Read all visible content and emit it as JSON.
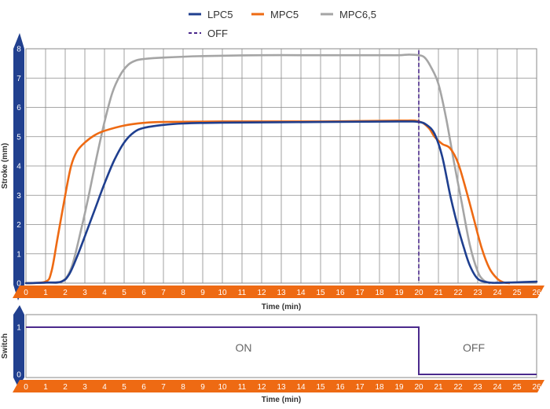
{
  "colors": {
    "LPC5": "#1f3f8f",
    "MPC5": "#ee6a13",
    "MPC6,5": "#a5a5a5",
    "OFF": "#4b2a8c",
    "axis_band_x": "#ee6a13",
    "axis_band_y": "#21408f",
    "grid": "#8a8a8a",
    "switch": "#4b2a8c"
  },
  "legend": [
    {
      "label": "LPC5",
      "style": "solid",
      "color_key": "LPC5"
    },
    {
      "label": "MPC5",
      "style": "solid",
      "color_key": "MPC5"
    },
    {
      "label": "MPC6,5",
      "style": "solid",
      "color_key": "MPC6,5"
    },
    {
      "label": "OFF",
      "style": "dashed",
      "color_key": "OFF"
    }
  ],
  "chart_data": [
    {
      "type": "line",
      "xlabel": "Time (min)",
      "ylabel": "Stroke (mm)",
      "xlim": [
        0,
        26
      ],
      "ylim": [
        0,
        8
      ],
      "x_ticks": [
        "0",
        "1",
        "2",
        "3",
        "4",
        "5",
        "6",
        "7",
        "8",
        "9",
        "10",
        "11",
        "12",
        "13",
        "14",
        "15",
        "16",
        "17",
        "18",
        "19",
        "20",
        "21",
        "22",
        "23",
        "24",
        "25",
        "26"
      ],
      "y_ticks": [
        "0",
        "1",
        "2",
        "3",
        "4",
        "5",
        "6",
        "7",
        "8"
      ],
      "grid": true,
      "legend_position": "top",
      "series": [
        {
          "name": "LPC5",
          "color_key": "LPC5",
          "x": [
            0,
            1,
            1.8,
            2.2,
            2.6,
            3,
            3.5,
            4,
            4.5,
            5,
            5.5,
            6,
            7,
            8,
            10,
            15,
            19,
            20,
            20.4,
            20.8,
            21.2,
            21.6,
            22,
            22.3,
            22.6,
            23,
            23.5,
            24,
            25,
            26
          ],
          "y": [
            0,
            0.02,
            0.05,
            0.3,
            0.9,
            1.6,
            2.5,
            3.4,
            4.2,
            4.8,
            5.15,
            5.3,
            5.4,
            5.45,
            5.48,
            5.5,
            5.52,
            5.5,
            5.4,
            5.1,
            4.3,
            3.0,
            1.9,
            1.2,
            0.6,
            0.15,
            0.03,
            0.01,
            0.03,
            0.05
          ]
        },
        {
          "name": "MPC5",
          "color_key": "MPC5",
          "x": [
            0,
            1,
            1.3,
            1.6,
            2,
            2.3,
            2.6,
            3,
            3.5,
            4,
            5,
            6,
            7,
            10,
            15,
            19,
            20,
            20.5,
            20.8,
            21.2,
            21.6,
            22,
            22.4,
            22.8,
            23.2,
            23.6,
            24,
            24.3,
            24.6
          ],
          "y": [
            0,
            0.05,
            0.4,
            1.5,
            3.0,
            4.0,
            4.5,
            4.8,
            5.05,
            5.2,
            5.38,
            5.47,
            5.5,
            5.52,
            5.52,
            5.55,
            5.52,
            5.3,
            5.0,
            4.75,
            4.6,
            4.1,
            3.2,
            2.2,
            1.2,
            0.5,
            0.15,
            0.03,
            0
          ]
        },
        {
          "name": "MPC6,5",
          "color_key": "MPC6,5",
          "x": [
            0,
            1,
            1.8,
            2.3,
            2.8,
            3.2,
            3.6,
            4,
            4.4,
            4.8,
            5.2,
            5.6,
            6,
            7,
            9,
            12,
            15,
            18,
            19,
            19.5,
            20,
            20.3,
            20.6,
            21,
            21.4,
            21.8,
            22.2,
            22.6,
            23,
            23.3,
            23.6
          ],
          "y": [
            0,
            0.02,
            0.05,
            0.5,
            1.8,
            3.0,
            4.3,
            5.5,
            6.5,
            7.1,
            7.45,
            7.6,
            7.65,
            7.7,
            7.75,
            7.78,
            7.78,
            7.78,
            7.78,
            7.8,
            7.78,
            7.7,
            7.4,
            6.8,
            5.6,
            4.1,
            2.7,
            1.3,
            0.4,
            0.1,
            0
          ]
        }
      ],
      "markers": [
        {
          "name": "OFF",
          "x": 20,
          "style": "dashed",
          "color_key": "OFF"
        }
      ]
    },
    {
      "type": "line",
      "xlabel": "Time (min)",
      "ylabel": "Switch",
      "xlim": [
        0,
        26
      ],
      "ylim": [
        0,
        1
      ],
      "x_ticks": [
        "0",
        "1",
        "2",
        "3",
        "4",
        "5",
        "6",
        "7",
        "8",
        "9",
        "10",
        "11",
        "12",
        "13",
        "14",
        "15",
        "16",
        "17",
        "18",
        "19",
        "20",
        "21",
        "22",
        "23",
        "24",
        "25",
        "26"
      ],
      "y_ticks": [
        "0",
        "1"
      ],
      "grid": false,
      "series": [
        {
          "name": "Switch",
          "color_key": "switch",
          "x": [
            0,
            20,
            20,
            26
          ],
          "y": [
            1,
            1,
            0,
            0
          ]
        }
      ],
      "annotations": [
        "ON",
        "OFF"
      ]
    }
  ]
}
